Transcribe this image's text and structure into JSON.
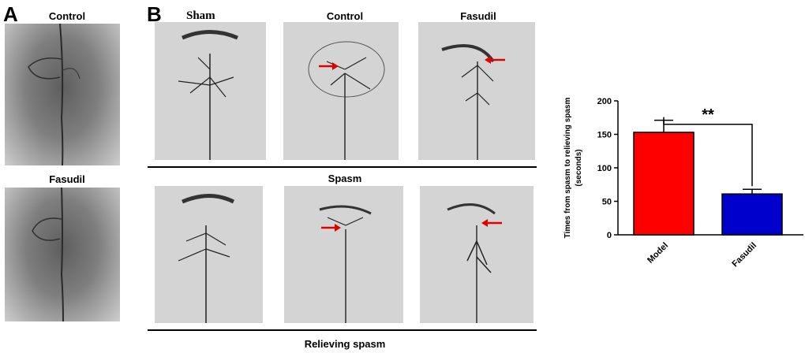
{
  "panel_a": {
    "letter": "A",
    "labels": [
      "Control",
      "Fasudil"
    ]
  },
  "panel_b": {
    "letter": "B",
    "columns": [
      "Sham",
      "Control",
      "Fasudil"
    ],
    "row_labels": [
      "Spasm",
      "Relieving spasm"
    ]
  },
  "chart_data": {
    "type": "bar",
    "categories": [
      "Model",
      "Fasudil"
    ],
    "values": [
      153,
      61
    ],
    "errors": [
      18,
      7
    ],
    "colors": [
      "#ff0000",
      "#0000cc"
    ],
    "ylabel": "Times from spasm to relieving spasm (seconds)",
    "ylabel_lines": [
      "Times from spasm to relieving spasm",
      "(seconds)"
    ],
    "ylim": [
      0,
      200
    ],
    "yticks": [
      0,
      50,
      100,
      150,
      200
    ],
    "significance": "**",
    "grid": false
  }
}
